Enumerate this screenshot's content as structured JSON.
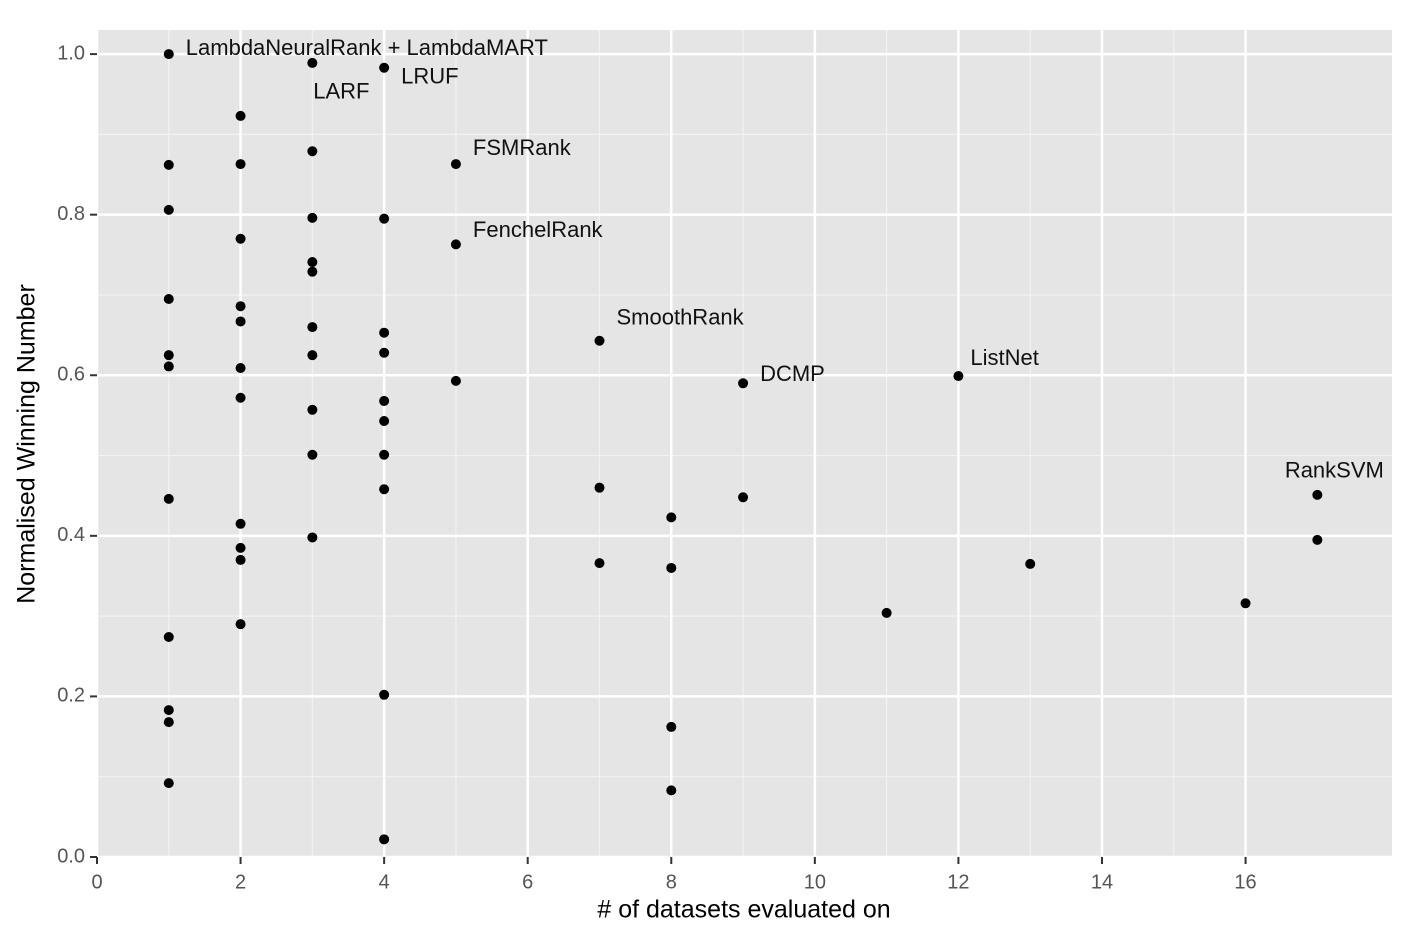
{
  "chart_data": {
    "type": "scatter",
    "xlabel": "# of datasets evaluated on",
    "ylabel": "Normalised Winning Number",
    "x": [
      1,
      1,
      1,
      1,
      1,
      1,
      1,
      1,
      1,
      1,
      1,
      2,
      2,
      2,
      2,
      2,
      2,
      2,
      2,
      2,
      2,
      2,
      3,
      3,
      3,
      3,
      3,
      3,
      3,
      3,
      3,
      3,
      4,
      4,
      4,
      4,
      4,
      4,
      4,
      4,
      4,
      4,
      5,
      5,
      5,
      7,
      7,
      7,
      8,
      8,
      8,
      8,
      9,
      9,
      11,
      12,
      13,
      16,
      17,
      17
    ],
    "values": [
      1.0,
      0.862,
      0.806,
      0.695,
      0.625,
      0.611,
      0.446,
      0.274,
      0.183,
      0.168,
      0.092,
      0.923,
      0.863,
      0.77,
      0.686,
      0.667,
      0.609,
      0.572,
      0.415,
      0.385,
      0.37,
      0.29,
      0.989,
      0.879,
      0.796,
      0.741,
      0.729,
      0.66,
      0.625,
      0.557,
      0.501,
      0.398,
      0.983,
      0.795,
      0.653,
      0.628,
      0.568,
      0.543,
      0.501,
      0.458,
      0.202,
      0.022,
      0.863,
      0.763,
      0.593,
      0.643,
      0.46,
      0.366,
      0.423,
      0.36,
      0.162,
      0.083,
      0.59,
      0.448,
      0.304,
      0.599,
      0.365,
      0.316,
      0.451,
      0.395
    ],
    "labels": [
      "LambdaNeuralRank + LambdaMART",
      null,
      null,
      null,
      null,
      null,
      null,
      null,
      null,
      null,
      null,
      null,
      null,
      null,
      null,
      null,
      null,
      null,
      null,
      null,
      null,
      null,
      "LARF",
      null,
      null,
      null,
      null,
      null,
      null,
      null,
      null,
      null,
      "LRUF",
      null,
      null,
      null,
      null,
      null,
      null,
      null,
      null,
      null,
      "FSMRank",
      "FenchelRank",
      null,
      "SmoothRank",
      null,
      null,
      null,
      null,
      null,
      null,
      "DCMP",
      null,
      null,
      "ListNet",
      null,
      null,
      "RankSVM",
      null
    ],
    "color": "#000000",
    "xlim": [
      0,
      18.04
    ],
    "xticks": [
      0,
      2,
      4,
      6,
      8,
      10,
      12,
      14,
      16
    ],
    "ylim": [
      0,
      1.03
    ],
    "yticks": [
      {
        "value": 0,
        "label": "0.0"
      },
      {
        "value": 0.2,
        "label": "0.2"
      },
      {
        "value": 0.4,
        "label": "0.4"
      },
      {
        "value": 0.6,
        "label": "0.6"
      },
      {
        "value": 0.8,
        "label": "0.8"
      },
      {
        "value": 1,
        "label": "1.0"
      }
    ],
    "grid": true
  }
}
